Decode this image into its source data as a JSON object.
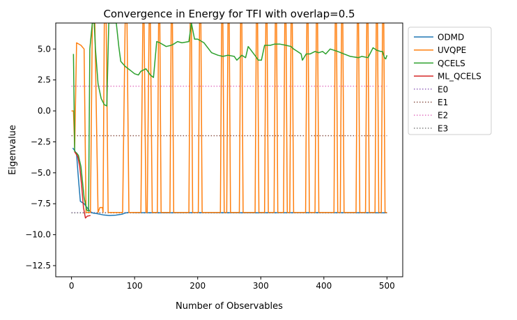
{
  "chart_data": {
    "type": "line",
    "title": "Convergence in Energy for TFI with overlap=0.5",
    "xlabel": "Number of Observables",
    "ylabel": "Eigenvalue",
    "xlim": [
      -25,
      525
    ],
    "ylim": [
      -13.4,
      7.1
    ],
    "xticks": [
      0,
      100,
      200,
      300,
      400,
      500
    ],
    "xtick_labels": [
      "0",
      "100",
      "200",
      "300",
      "400",
      "500"
    ],
    "yticks": [
      -12.5,
      -10.0,
      -7.5,
      -5.0,
      -2.5,
      0.0,
      2.5,
      5.0
    ],
    "ytick_labels": [
      "−12.5",
      "−10.0",
      "−7.5",
      "−5.0",
      "−2.5",
      "0.0",
      "2.5",
      "5.0"
    ],
    "grid": false,
    "legend_placement": "outside upper right",
    "series": [
      {
        "name": "ODMD",
        "color": "#1f77b4",
        "style": "solid",
        "points": [
          [
            2,
            -3.0
          ],
          [
            5,
            -3.2
          ],
          [
            8,
            -3.5
          ],
          [
            11,
            -5.5
          ],
          [
            14,
            -7.3
          ],
          [
            17,
            -7.4
          ],
          [
            20,
            -7.5
          ],
          [
            23,
            -7.7
          ],
          [
            26,
            -7.9
          ],
          [
            30,
            -8.15
          ],
          [
            34,
            -8.25
          ],
          [
            40,
            -8.3
          ],
          [
            50,
            -8.4
          ],
          [
            60,
            -8.45
          ],
          [
            70,
            -8.42
          ],
          [
            80,
            -8.35
          ],
          [
            85,
            -8.25
          ],
          [
            90,
            -8.2
          ],
          [
            100,
            -8.22
          ],
          [
            150,
            -8.23
          ],
          [
            200,
            -8.22
          ],
          [
            300,
            -8.23
          ],
          [
            400,
            -8.22
          ],
          [
            500,
            -8.23
          ]
        ]
      },
      {
        "name": "UVQPE",
        "color": "#ff7f0e",
        "style": "solid",
        "points": [
          [
            0,
            0.0
          ],
          [
            3,
            0.0
          ],
          [
            5,
            -3.0
          ],
          [
            8,
            5.5
          ],
          [
            15,
            5.3
          ],
          [
            20,
            5.0
          ],
          [
            23,
            -8.2
          ],
          [
            26,
            -8.2
          ],
          [
            30,
            -8.2
          ],
          [
            33,
            7.1
          ],
          [
            37,
            7.1
          ],
          [
            42,
            -8.2
          ],
          [
            45,
            -7.8
          ],
          [
            49,
            -7.8
          ],
          [
            50,
            -8.2
          ],
          [
            52,
            7.1
          ],
          [
            55,
            7.1
          ],
          [
            58,
            -8.2
          ],
          [
            81,
            -8.2
          ],
          [
            85,
            7.1
          ],
          [
            88,
            7.1
          ],
          [
            91,
            -8.2
          ],
          [
            110,
            -8.2
          ],
          [
            113,
            7.1
          ],
          [
            115,
            7.1
          ],
          [
            118,
            -8.2
          ],
          [
            120,
            -8.2
          ],
          [
            123,
            7.1
          ],
          [
            125,
            7.1
          ],
          [
            128,
            -8.2
          ],
          [
            136,
            -8.2
          ],
          [
            138,
            7.1
          ],
          [
            140,
            7.1
          ],
          [
            142,
            -8.2
          ],
          [
            156,
            -8.2
          ],
          [
            158,
            7.1
          ],
          [
            160,
            7.1
          ],
          [
            162,
            -8.2
          ],
          [
            186,
            -8.2
          ],
          [
            188,
            7.1
          ],
          [
            190,
            7.1
          ],
          [
            192,
            -8.2
          ],
          [
            201,
            -8.2
          ],
          [
            203,
            7.1
          ],
          [
            205,
            7.1
          ],
          [
            207,
            -8.2
          ],
          [
            236,
            -8.2
          ],
          [
            238,
            7.1
          ],
          [
            240,
            7.1
          ],
          [
            242,
            -8.2
          ],
          [
            246,
            -8.2
          ],
          [
            248,
            7.1
          ],
          [
            250,
            7.1
          ],
          [
            252,
            -8.2
          ],
          [
            266,
            -8.2
          ],
          [
            268,
            7.1
          ],
          [
            270,
            7.1
          ],
          [
            272,
            -8.2
          ],
          [
            291,
            -8.2
          ],
          [
            293,
            7.1
          ],
          [
            295,
            7.1
          ],
          [
            297,
            -8.2
          ],
          [
            306,
            -8.2
          ],
          [
            308,
            7.1
          ],
          [
            310,
            7.1
          ],
          [
            312,
            -8.2
          ],
          [
            321,
            -8.2
          ],
          [
            323,
            7.1
          ],
          [
            325,
            7.1
          ],
          [
            327,
            -8.2
          ],
          [
            336,
            -8.2
          ],
          [
            338,
            7.1
          ],
          [
            340,
            7.1
          ],
          [
            342,
            -8.2
          ],
          [
            346,
            -8.2
          ],
          [
            348,
            7.1
          ],
          [
            350,
            7.1
          ],
          [
            352,
            -8.2
          ],
          [
            371,
            -8.2
          ],
          [
            373,
            7.1
          ],
          [
            375,
            7.1
          ],
          [
            377,
            -8.2
          ],
          [
            386,
            -8.2
          ],
          [
            388,
            7.1
          ],
          [
            390,
            7.1
          ],
          [
            392,
            -8.2
          ],
          [
            416,
            -8.2
          ],
          [
            418,
            7.1
          ],
          [
            420,
            7.1
          ],
          [
            422,
            -8.2
          ],
          [
            426,
            -8.2
          ],
          [
            428,
            7.1
          ],
          [
            430,
            7.1
          ],
          [
            432,
            -8.2
          ],
          [
            451,
            -8.2
          ],
          [
            453,
            7.1
          ],
          [
            455,
            7.1
          ],
          [
            457,
            -8.2
          ],
          [
            466,
            -8.2
          ],
          [
            468,
            7.1
          ],
          [
            470,
            7.1
          ],
          [
            472,
            -8.2
          ],
          [
            481,
            -8.2
          ],
          [
            483,
            7.1
          ],
          [
            485,
            7.1
          ],
          [
            487,
            -8.2
          ],
          [
            491,
            -8.2
          ],
          [
            493,
            7.1
          ],
          [
            495,
            7.1
          ],
          [
            497,
            -8.2
          ],
          [
            500,
            -8.2
          ]
        ]
      },
      {
        "name": "QCELS",
        "color": "#2ca02c",
        "style": "solid",
        "points": [
          [
            3,
            4.6
          ],
          [
            5,
            -3.3
          ],
          [
            8,
            -3.4
          ],
          [
            11,
            -3.6
          ],
          [
            15,
            -4.5
          ],
          [
            20,
            -7.0
          ],
          [
            24,
            -8.0
          ],
          [
            27,
            -8.1
          ],
          [
            29,
            5.0
          ],
          [
            33,
            7.1
          ],
          [
            36,
            7.1
          ],
          [
            38,
            5.0
          ],
          [
            42,
            2.2
          ],
          [
            47,
            1.0
          ],
          [
            52,
            0.5
          ],
          [
            56,
            0.4
          ],
          [
            59,
            7.1
          ],
          [
            65,
            7.1
          ],
          [
            71,
            7.1
          ],
          [
            75,
            5.2
          ],
          [
            78,
            4.0
          ],
          [
            85,
            3.6
          ],
          [
            95,
            3.2
          ],
          [
            100,
            3.0
          ],
          [
            106,
            2.9
          ],
          [
            110,
            3.2
          ],
          [
            118,
            3.4
          ],
          [
            125,
            2.9
          ],
          [
            130,
            2.7
          ],
          [
            135,
            5.6
          ],
          [
            140,
            5.5
          ],
          [
            150,
            5.2
          ],
          [
            158,
            5.3
          ],
          [
            162,
            5.4
          ],
          [
            168,
            5.6
          ],
          [
            175,
            5.5
          ],
          [
            186,
            5.6
          ],
          [
            190,
            7.1
          ],
          [
            195,
            5.8
          ],
          [
            200,
            5.8
          ],
          [
            210,
            5.5
          ],
          [
            222,
            4.7
          ],
          [
            232,
            4.5
          ],
          [
            240,
            4.4
          ],
          [
            248,
            4.5
          ],
          [
            258,
            4.4
          ],
          [
            262,
            4.1
          ],
          [
            270,
            4.5
          ],
          [
            276,
            4.3
          ],
          [
            280,
            5.2
          ],
          [
            292,
            4.4
          ],
          [
            296,
            4.1
          ],
          [
            301,
            4.1
          ],
          [
            306,
            5.3
          ],
          [
            315,
            5.3
          ],
          [
            322,
            5.4
          ],
          [
            330,
            5.4
          ],
          [
            340,
            5.3
          ],
          [
            348,
            5.2
          ],
          [
            352,
            5.0
          ],
          [
            358,
            4.8
          ],
          [
            364,
            4.6
          ],
          [
            366,
            4.1
          ],
          [
            372,
            4.6
          ],
          [
            378,
            4.6
          ],
          [
            386,
            4.8
          ],
          [
            392,
            4.7
          ],
          [
            398,
            4.8
          ],
          [
            403,
            4.6
          ],
          [
            410,
            5.0
          ],
          [
            422,
            4.8
          ],
          [
            432,
            4.6
          ],
          [
            442,
            4.4
          ],
          [
            455,
            4.3
          ],
          [
            460,
            4.4
          ],
          [
            470,
            4.3
          ],
          [
            478,
            5.1
          ],
          [
            484,
            4.9
          ],
          [
            490,
            4.8
          ],
          [
            493,
            4.8
          ],
          [
            496,
            4.3
          ],
          [
            498,
            4.2
          ],
          [
            500,
            4.5
          ]
        ]
      },
      {
        "name": "ML_QCELS",
        "color": "#d62728",
        "style": "solid",
        "points": [
          [
            5,
            -3.3
          ],
          [
            10,
            -3.7
          ],
          [
            13,
            -4.5
          ],
          [
            16,
            -6.0
          ],
          [
            19,
            -7.8
          ],
          [
            22,
            -8.65
          ],
          [
            25,
            -8.5
          ],
          [
            30,
            -8.45
          ]
        ]
      },
      {
        "name": "E0",
        "color": "#9467bd",
        "style": "dotted",
        "points": [
          [
            0,
            -8.22
          ],
          [
            500,
            -8.22
          ]
        ]
      },
      {
        "name": "E1",
        "color": "#8c564b",
        "style": "dotted",
        "points": [
          [
            0,
            -2.0
          ],
          [
            500,
            -2.0
          ]
        ]
      },
      {
        "name": "E2",
        "color": "#e377c2",
        "style": "dotted",
        "points": [
          [
            0,
            2.0
          ],
          [
            500,
            2.0
          ]
        ]
      },
      {
        "name": "E3",
        "color": "#7f7f7f",
        "style": "dotted",
        "points": [
          [
            0,
            -8.24
          ],
          [
            500,
            -8.24
          ]
        ]
      }
    ]
  }
}
